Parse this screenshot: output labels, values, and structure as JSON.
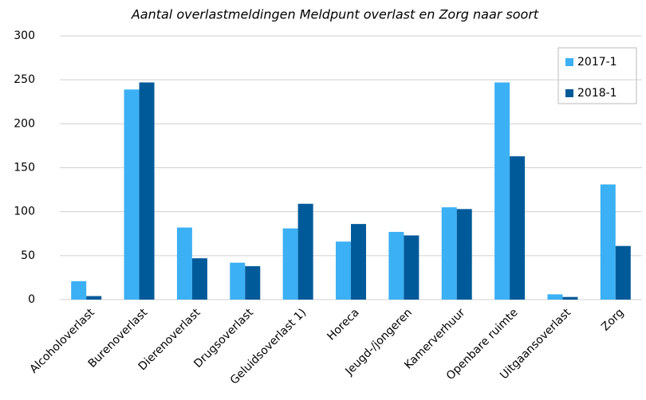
{
  "chart_data": {
    "type": "bar",
    "title": "Aantal overlastmeldingen Meldpunt overlast en Zorg naar soort",
    "categories": [
      "Alcoholoverlast",
      "Burenoverlast",
      "Dierenoverlast",
      "Drugsoverlast",
      "Geluidsoverlast 1)",
      "Horeca",
      "Jeugd-/jongeren",
      "Kamerverhuur",
      "Openbare ruimte",
      "Uitgaansoverlast",
      "Zorg"
    ],
    "series": [
      {
        "name": "2017-1",
        "color": "#3cb0f4",
        "values": [
          21,
          239,
          82,
          42,
          81,
          66,
          77,
          105,
          247,
          6,
          131
        ]
      },
      {
        "name": "2018-1",
        "color": "#005a9a",
        "values": [
          4,
          247,
          47,
          38,
          109,
          86,
          73,
          103,
          163,
          3,
          61
        ]
      }
    ],
    "ylim": [
      0,
      300
    ],
    "yticks": [
      0,
      50,
      100,
      150,
      200,
      250,
      300
    ],
    "grid": true,
    "legend": "top-right"
  }
}
